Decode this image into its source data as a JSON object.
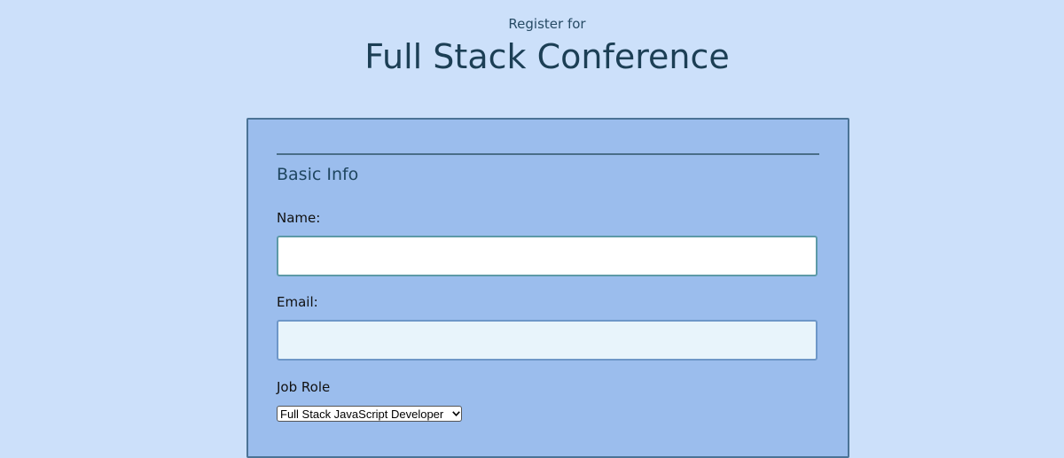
{
  "header": {
    "subtitle": "Register for",
    "title": "Full Stack Conference"
  },
  "form": {
    "section_title": "Basic Info",
    "name": {
      "label": "Name:",
      "value": ""
    },
    "email": {
      "label": "Email:",
      "value": ""
    },
    "job_role": {
      "label": "Job Role",
      "selected": "Full Stack JavaScript Developer"
    }
  },
  "colors": {
    "page_background": "#cce0fa",
    "card_background": "#9bbded",
    "heading_text": "#1c3f55"
  }
}
